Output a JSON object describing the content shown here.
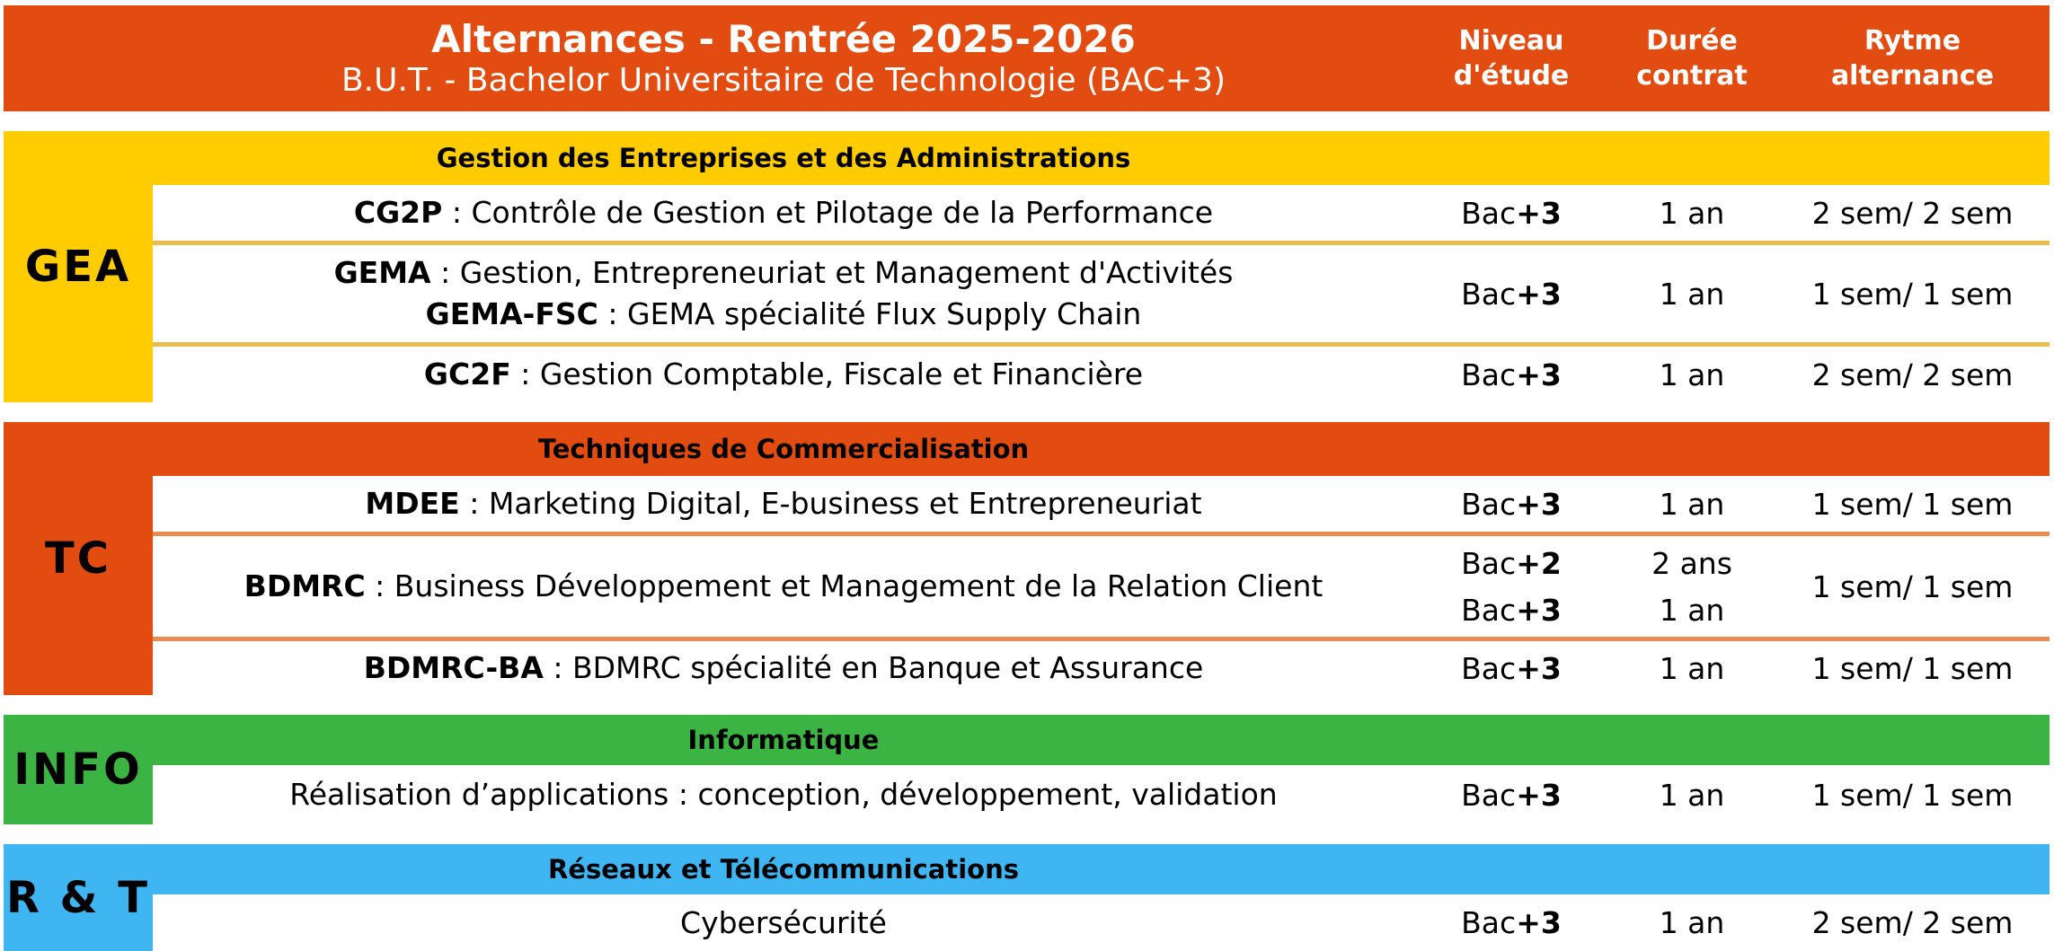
{
  "colors": {
    "header_orange": "#E34C10",
    "gea_yellow": "#FFCC00",
    "gea_separator": "#E9BC4B",
    "tc_orange": "#E34C10",
    "tc_separator": "#EA8B51",
    "info_green": "#3CB444",
    "rt_blue": "#3FB5F2",
    "header_text": "#FFFFFF",
    "body_text": "#000000"
  },
  "header": {
    "title": "Alternances - Rentrée 2025-2026",
    "subtitle": "B.U.T. - Bachelor Universitaire de Technologie (BAC+3)",
    "columns": [
      {
        "line1": "Niveau",
        "line2": "d'étude"
      },
      {
        "line1": "Durée",
        "line2": "contrat"
      },
      {
        "line1": "Rytme",
        "line2": "alternance"
      }
    ]
  },
  "sections": [
    {
      "label": "GEA",
      "title": "Gestion des Entreprises et des Administrations",
      "rows": [
        {
          "program": [
            {
              "code": "CG2P",
              "sep": " : ",
              "name": "Contrôle de Gestion et Pilotage de la Performance"
            }
          ],
          "levels": [
            {
              "base": "Bac",
              "plus": "+3"
            }
          ],
          "durations": [
            "1 an"
          ],
          "rhythm": "2 sem/ 2 sem"
        },
        {
          "program": [
            {
              "code": "GEMA",
              "sep": " : ",
              "name": "Gestion, Entrepreneuriat et Management d'Activités"
            },
            {
              "code": "GEMA-FSC",
              "sep": " : ",
              "name": "GEMA spécialité Flux Supply Chain"
            }
          ],
          "levels": [
            {
              "base": "Bac",
              "plus": "+3"
            }
          ],
          "durations": [
            "1 an"
          ],
          "rhythm": "1 sem/ 1 sem"
        },
        {
          "program": [
            {
              "code": "GC2F",
              "sep": " : ",
              "name": "Gestion Comptable, Fiscale et Financière"
            }
          ],
          "levels": [
            {
              "base": "Bac",
              "plus": "+3"
            }
          ],
          "durations": [
            "1 an"
          ],
          "rhythm": "2 sem/ 2 sem"
        }
      ]
    },
    {
      "label": "TC",
      "title": "Techniques de Commercialisation",
      "rows": [
        {
          "program": [
            {
              "code": "MDEE",
              "sep": " : ",
              "name": "Marketing Digital, E-business et Entrepreneuriat"
            }
          ],
          "levels": [
            {
              "base": "Bac",
              "plus": "+3"
            }
          ],
          "durations": [
            "1 an"
          ],
          "rhythm": "1 sem/ 1 sem"
        },
        {
          "program": [
            {
              "code": "BDMRC",
              "sep": " : ",
              "name": "Business Développement et Management de la Relation Client"
            }
          ],
          "levels": [
            {
              "base": "Bac",
              "plus": "+2"
            },
            {
              "base": "Bac",
              "plus": "+3"
            }
          ],
          "durations": [
            "2 ans",
            "1 an"
          ],
          "rhythm": "1 sem/ 1 sem"
        },
        {
          "program": [
            {
              "code": "BDMRC-BA",
              "sep": " : ",
              "name": "BDMRC spécialité en Banque et Assurance"
            }
          ],
          "levels": [
            {
              "base": "Bac",
              "plus": "+3"
            }
          ],
          "durations": [
            "1 an"
          ],
          "rhythm": "1 sem/ 1 sem"
        }
      ]
    },
    {
      "label": "INFO",
      "title": "Informatique",
      "rows": [
        {
          "program": [
            {
              "name": "Réalisation d’applications : conception, développement, validation"
            }
          ],
          "levels": [
            {
              "base": "Bac",
              "plus": "+3"
            }
          ],
          "durations": [
            "1 an"
          ],
          "rhythm": "1 sem/ 1 sem"
        }
      ]
    },
    {
      "label": "R & T",
      "title": "Réseaux et Télécommunications",
      "rows": [
        {
          "program": [
            {
              "name": "Cybersécurité"
            }
          ],
          "levels": [
            {
              "base": "Bac",
              "plus": "+3"
            }
          ],
          "durations": [
            "1 an"
          ],
          "rhythm": "2 sem/ 2 sem"
        }
      ]
    }
  ]
}
